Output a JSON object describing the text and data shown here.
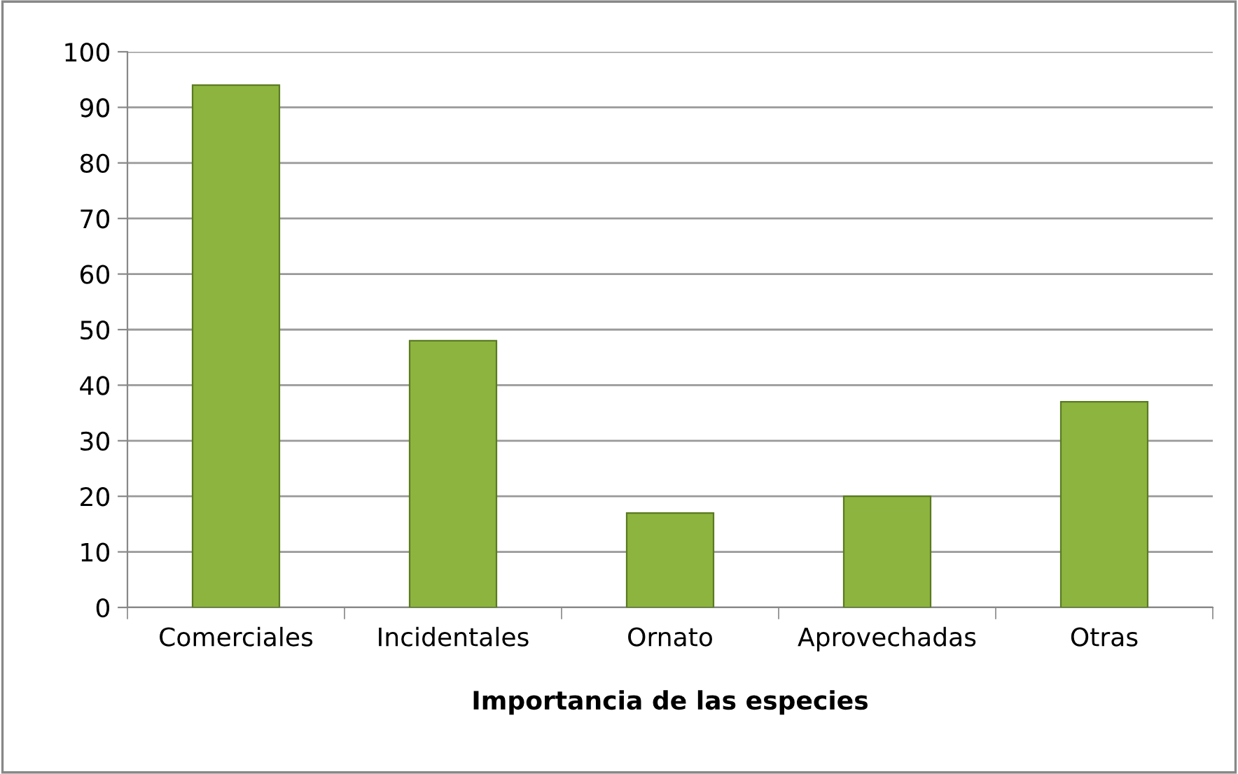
{
  "chart_data": {
    "type": "bar",
    "xlabel": "Importancia de las especies",
    "categories": [
      "Comerciales",
      "Incidentales",
      "Ornato",
      "Aprovechadas",
      "Otras"
    ],
    "values": [
      94,
      48,
      17,
      20,
      37
    ],
    "color": "#8db43e",
    "ylim": [
      0,
      100
    ],
    "yticks": [
      0,
      10,
      20,
      30,
      40,
      50,
      60,
      70,
      80,
      90,
      100
    ],
    "grid": "y",
    "legend": false
  }
}
